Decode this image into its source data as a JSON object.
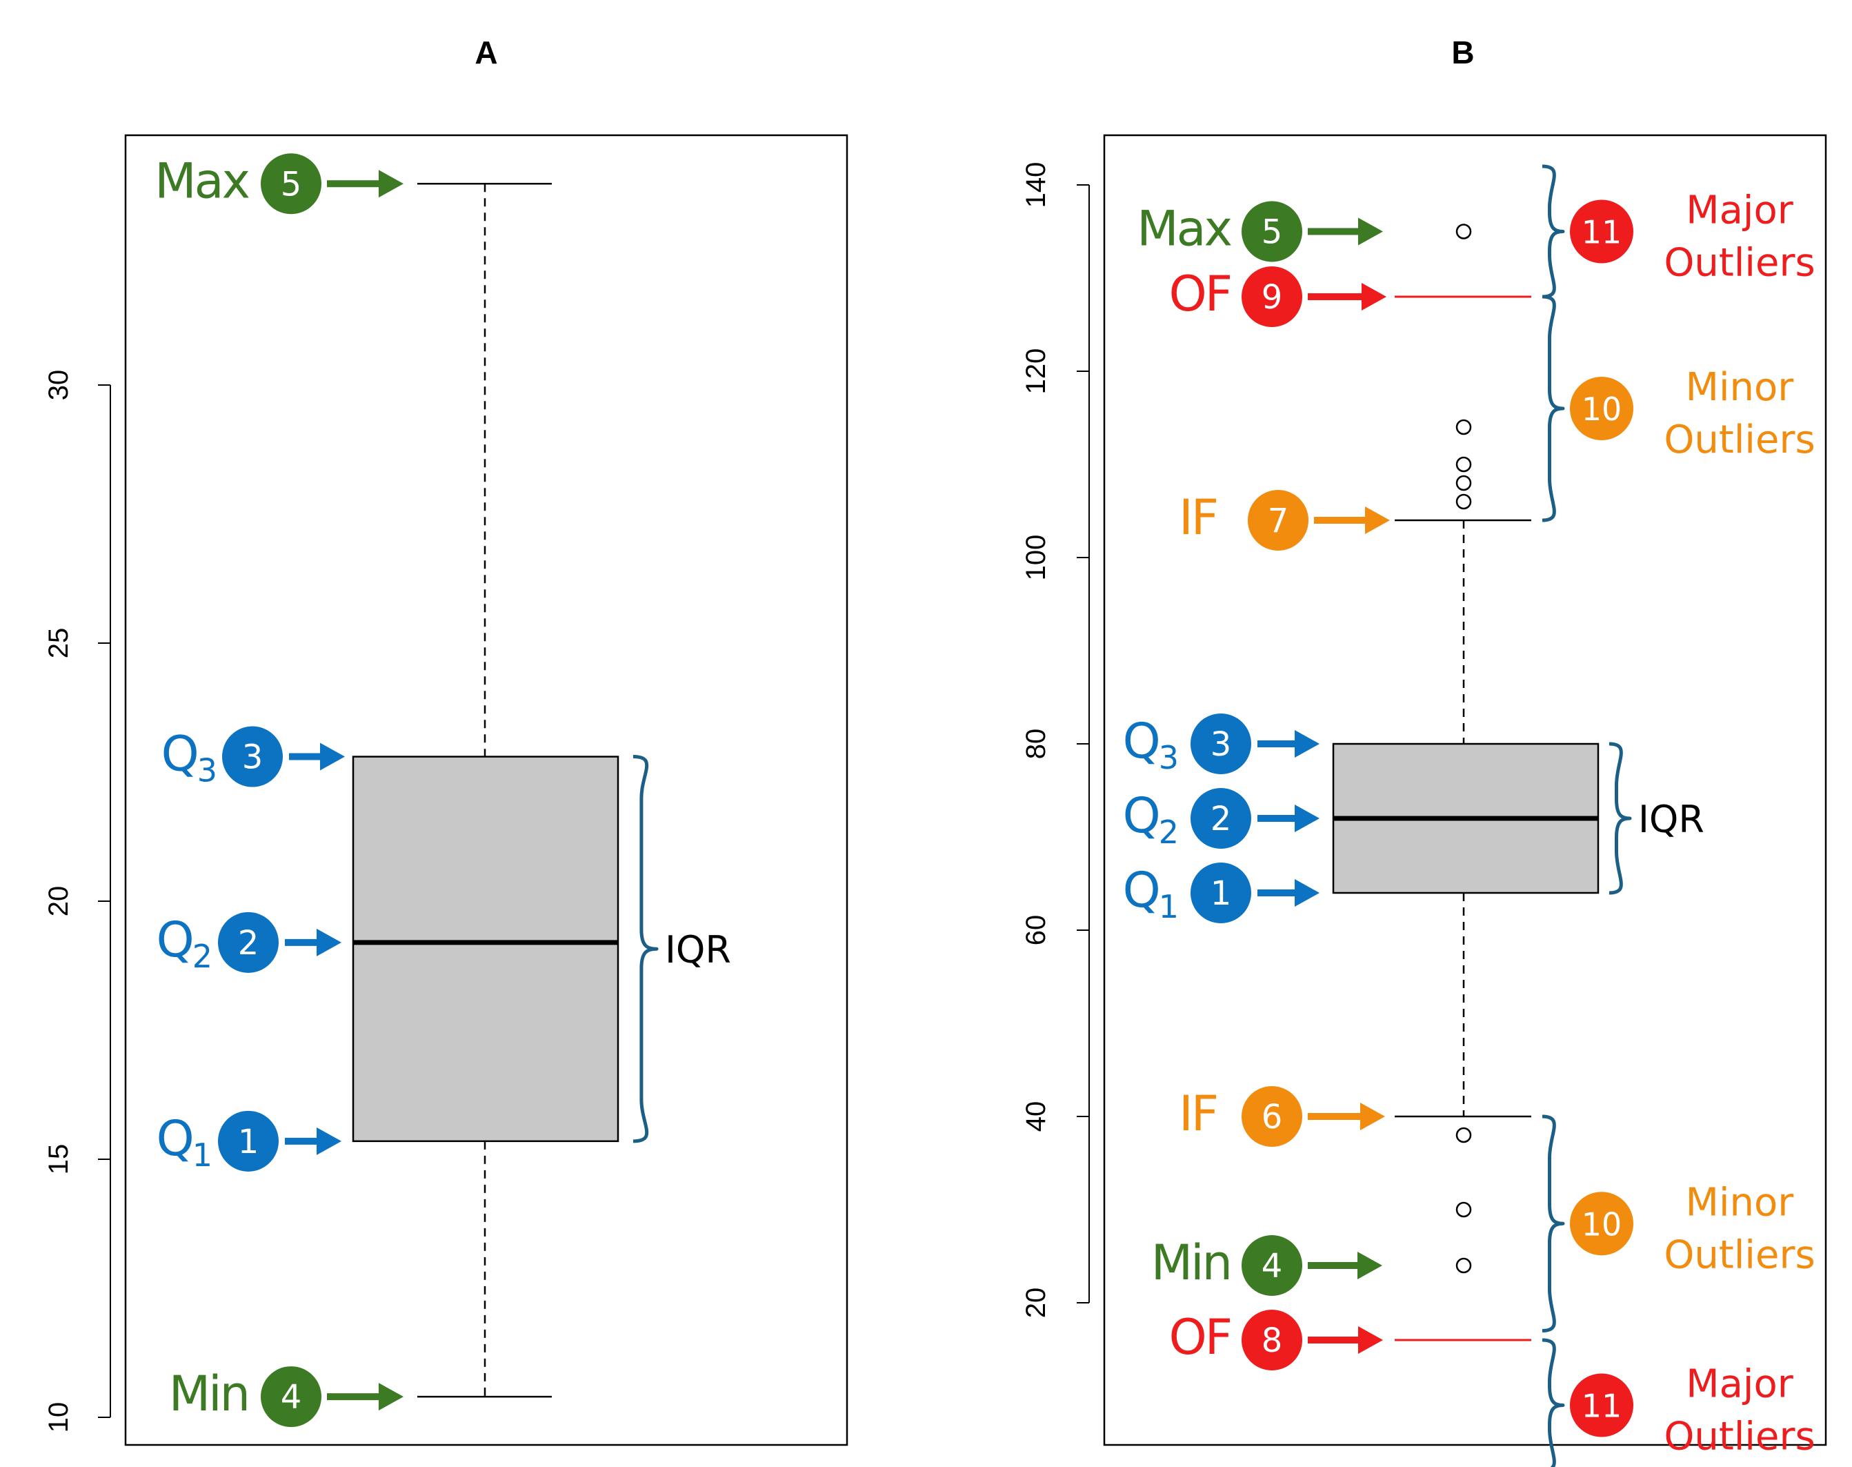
{
  "colors": {
    "green": "#3c7a24",
    "blue": "#0c72c2",
    "red": "#ee1c1c",
    "orange": "#f28c0f",
    "brace": "#1c5f86",
    "box": "#c8c8c8"
  },
  "chart_data": [
    {
      "type": "boxplot",
      "title": "A",
      "ylim": [
        9.5,
        34.8
      ],
      "yticks": [
        10,
        15,
        20,
        25,
        30
      ],
      "stats": {
        "min": 10.4,
        "q1": 15.35,
        "median": 19.2,
        "q3": 22.8,
        "max": 33.9
      },
      "outliers": [],
      "annotations": [
        {
          "key": "max",
          "label": "Max",
          "num": "5",
          "value": 33.9,
          "color": "green"
        },
        {
          "key": "q3",
          "label": "Q",
          "sub": "3",
          "num": "3",
          "value": 22.8,
          "color": "blue"
        },
        {
          "key": "q2",
          "label": "Q",
          "sub": "2",
          "num": "2",
          "value": 19.2,
          "color": "blue"
        },
        {
          "key": "q1",
          "label": "Q",
          "sub": "1",
          "num": "1",
          "value": 15.35,
          "color": "blue"
        },
        {
          "key": "min",
          "label": "Min",
          "num": "4",
          "value": 10.4,
          "color": "green"
        }
      ],
      "braces": [
        {
          "from": 15.35,
          "to": 22.8,
          "label": "IQR",
          "color": "black"
        }
      ]
    },
    {
      "type": "boxplot",
      "title": "B",
      "ylim": [
        7,
        147
      ],
      "yticks": [
        20,
        40,
        60,
        80,
        100,
        120,
        140
      ],
      "stats": {
        "min": 40,
        "q1": 64,
        "median": 72,
        "q3": 80,
        "max": 104
      },
      "outliers": [
        135,
        114,
        110,
        108,
        106,
        38,
        30,
        24
      ],
      "fences": [
        {
          "name": "OF",
          "value": 128
        },
        {
          "name": "OF",
          "value": 16
        }
      ],
      "annotations": [
        {
          "key": "max",
          "label": "Max",
          "num": "5",
          "value": 135,
          "color": "green"
        },
        {
          "key": "of-upper",
          "label": "OF",
          "num": "9",
          "value": 128,
          "color": "red"
        },
        {
          "key": "if-upper",
          "label": "IF",
          "num": "7",
          "value": 104,
          "color": "orange"
        },
        {
          "key": "q3",
          "label": "Q",
          "sub": "3",
          "num": "3",
          "value": 80,
          "color": "blue"
        },
        {
          "key": "q2",
          "label": "Q",
          "sub": "2",
          "num": "2",
          "value": 72,
          "color": "blue"
        },
        {
          "key": "q1",
          "label": "Q",
          "sub": "1",
          "num": "1",
          "value": 64,
          "color": "blue"
        },
        {
          "key": "if-lower",
          "label": "IF",
          "num": "6",
          "value": 40,
          "color": "orange"
        },
        {
          "key": "min",
          "label": "Min",
          "num": "4",
          "value": 24,
          "color": "green"
        },
        {
          "key": "of-lower",
          "label": "OF",
          "num": "8",
          "value": 16,
          "color": "red"
        }
      ],
      "braces": [
        {
          "from": 128,
          "to": 142,
          "num": "11",
          "label1": "Major",
          "label2": "Outliers",
          "color": "red"
        },
        {
          "from": 104,
          "to": 128,
          "num": "10",
          "label1": "Minor",
          "label2": "Outliers",
          "color": "orange"
        },
        {
          "from": 64,
          "to": 80,
          "label": "IQR",
          "color": "black"
        },
        {
          "from": 17,
          "to": 40,
          "num": "10",
          "label1": "Minor",
          "label2": "Outliers",
          "color": "orange"
        },
        {
          "from": 2,
          "to": 16,
          "num": "11",
          "label1": "Major",
          "label2": "Outliers",
          "color": "red"
        }
      ]
    }
  ]
}
